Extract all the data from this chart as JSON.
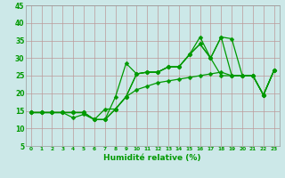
{
  "xlabel": "Humidité relative (%)",
  "bg_color": "#cce8e8",
  "grid_color": "#bb9999",
  "line_color": "#009900",
  "x_values": [
    0,
    1,
    2,
    3,
    4,
    5,
    6,
    7,
    8,
    9,
    10,
    11,
    12,
    13,
    14,
    15,
    16,
    17,
    18,
    19,
    20,
    21,
    22,
    23
  ],
  "series": [
    [
      14.5,
      14.5,
      14.5,
      14.5,
      14.5,
      14.5,
      12.5,
      12.5,
      19.0,
      28.5,
      25.5,
      26.0,
      26.0,
      27.5,
      27.5,
      31.0,
      36.0,
      30.0,
      36.0,
      35.5,
      25.0,
      25.0,
      19.5,
      26.5
    ],
    [
      14.5,
      14.5,
      14.5,
      14.5,
      14.5,
      14.5,
      12.5,
      12.5,
      15.5,
      19.0,
      25.5,
      26.0,
      26.0,
      27.5,
      27.5,
      31.0,
      34.0,
      30.0,
      36.0,
      25.0,
      25.0,
      25.0,
      19.5,
      26.5
    ],
    [
      14.5,
      14.5,
      14.5,
      14.5,
      13.0,
      14.0,
      12.5,
      12.5,
      15.5,
      19.0,
      25.5,
      26.0,
      26.0,
      27.5,
      27.5,
      31.0,
      34.0,
      30.0,
      25.0,
      25.0,
      25.0,
      25.0,
      19.5,
      26.5
    ],
    [
      14.5,
      14.5,
      14.5,
      14.5,
      14.5,
      14.5,
      12.5,
      15.5,
      15.5,
      19.0,
      21.0,
      22.0,
      23.0,
      23.5,
      24.0,
      24.5,
      25.0,
      25.5,
      26.0,
      25.0,
      25.0,
      25.0,
      19.5,
      26.5
    ]
  ],
  "ylim": [
    5,
    45
  ],
  "xlim": [
    -0.5,
    23.5
  ],
  "yticks": [
    5,
    10,
    15,
    20,
    25,
    30,
    35,
    40,
    45
  ],
  "xticks": [
    0,
    1,
    2,
    3,
    4,
    5,
    6,
    7,
    8,
    9,
    10,
    11,
    12,
    13,
    14,
    15,
    16,
    17,
    18,
    19,
    20,
    21,
    22,
    23
  ],
  "xlabel_fontsize": 6.5,
  "tick_fontsize_x": 4.2,
  "tick_fontsize_y": 5.5,
  "linewidth": 0.9,
  "markersize": 2.5
}
